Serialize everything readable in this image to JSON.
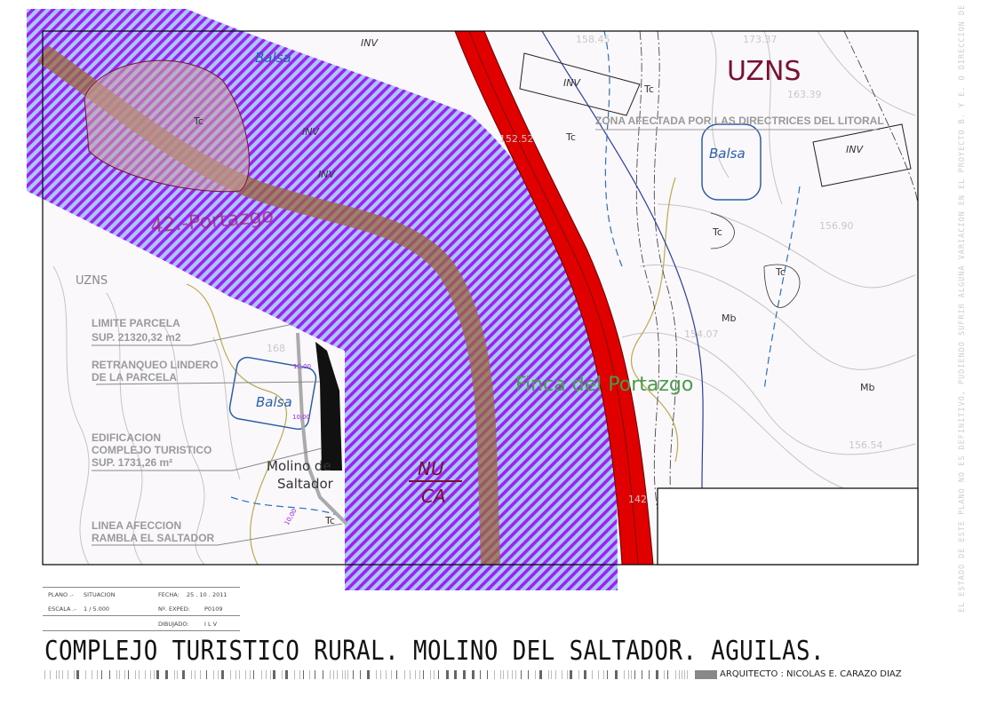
{
  "map": {
    "zone_uzns_large": "UZNS",
    "zone_uzns_small": "UZNS",
    "zona_afectada": "ZONA AFECTADA POR LAS DIRECTRICES DEL LITORAL",
    "portazgo_label": "42.-Portazgo",
    "finca_label": "Finca del Portazgo",
    "molino_label_1": "Molino de",
    "molino_label_2": "Saltador",
    "nuca_1": "NU",
    "nuca_2": "CA",
    "balsa": [
      "Balsa",
      "Balsa",
      "Balsa"
    ],
    "inv": [
      "INV",
      "INV",
      "INV",
      "INV",
      "INV"
    ],
    "tc": [
      "Tc",
      "Tc",
      "Tc",
      "Tc",
      "Tc",
      "Tc"
    ],
    "mb": [
      "Mb",
      "Mb"
    ],
    "elevations": [
      "158.45",
      "173.37",
      "163.39",
      "152.52",
      "156.90",
      "156.54",
      "168",
      "142",
      "154.07"
    ],
    "dims": [
      "10,00",
      "10,00",
      "10,00"
    ],
    "legend_labels": {
      "limite_1": "LIMITE PARCELA",
      "limite_2": "SUP. 21320,32 m2",
      "retranqueo_1": "RETRANQUEO LINDERO",
      "retranqueo_2": "DE LA PARCELA",
      "edificacion_1": "EDIFICACION",
      "edificacion_2": "COMPLEJO TURISTICO",
      "edificacion_3": "SUP. 1731,26 m²",
      "linea_1": "LINEA AFECCION",
      "linea_2": "RAMBLA EL SALTADOR"
    },
    "colors": {
      "hatch_purple": "#a020f0",
      "hatch_blue": "#a6c8ff",
      "road_red": "#e00000",
      "rambla_brown": "#9a6a3a",
      "zone_text": "#7a1030",
      "finca_text": "#4a9a4a"
    }
  },
  "titleblock": {
    "plano_label": "PLANO .-",
    "plano_value": "SITUACION",
    "escala_label": "ESCALA .-",
    "escala_value": "1 / 5.000",
    "fecha_label": "FECHA:",
    "fecha_value": "25 . 10 . 2011",
    "exped_label": "Nº. EXPED:",
    "exped_value": "P0109",
    "dibujado_label": "DIBUJADO:",
    "dibujado_value": "I L V"
  },
  "title": "COMPLEJO TURISTICO RURAL.  MOLINO DEL SALTADOR.   AGUILAS.",
  "architect": "ARQUITECTO : NICOLAS E. CARAZO DIAZ",
  "side_note": "EL ESTADO DE ESTE PLANO NO ES DEFINITIVO, PUDIENDO SUFRIR ALGUNA VARIACION EN EL PROYECTO B. Y E. O DIRECCION DE LAS OBRAS"
}
